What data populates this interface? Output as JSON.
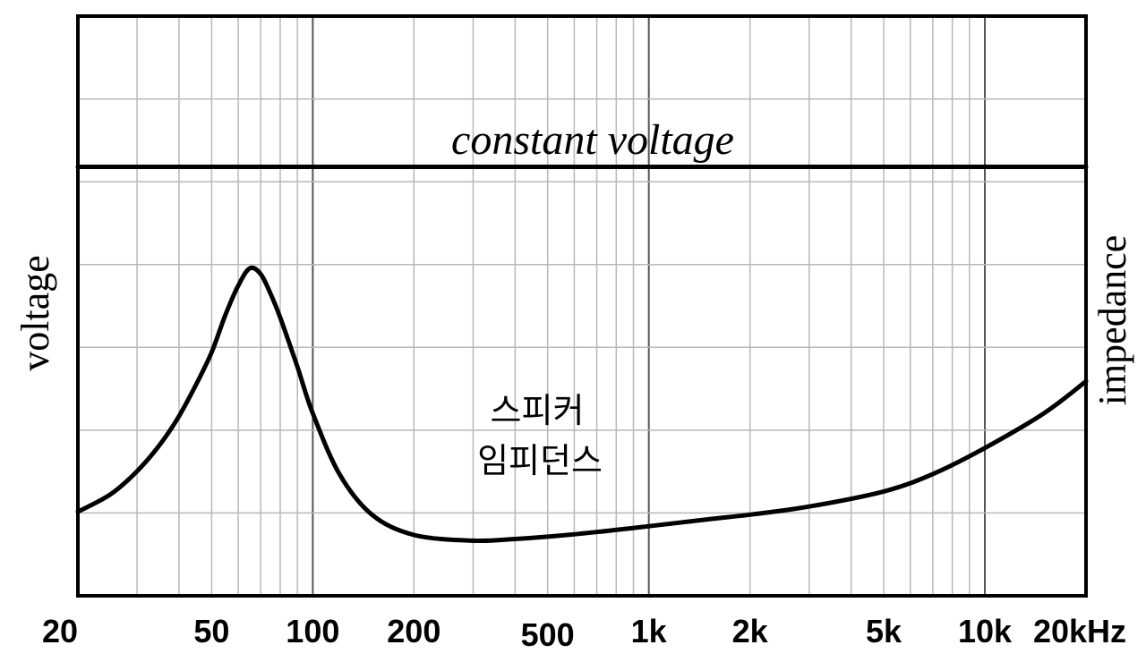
{
  "chart_data": {
    "type": "line",
    "x_scale": "log",
    "xlim": [
      20,
      20000
    ],
    "grid": true,
    "ylabel_left": "voltage",
    "ylabel_right": "impedance",
    "x_tick_labels": [
      "20",
      "50",
      "100",
      "200",
      "500",
      "1k",
      "2k",
      "5k",
      "10k",
      "20kHz"
    ],
    "x_tick_values": [
      20,
      50,
      100,
      200,
      500,
      1000,
      2000,
      5000,
      10000,
      20000
    ],
    "annotations": {
      "constant_voltage": "constant voltage",
      "impedance_line1": "스피커",
      "impedance_line2": "임피던스"
    },
    "y_range": [
      0,
      100
    ],
    "series": [
      {
        "role": "constant-voltage",
        "x": [
          20,
          20000
        ],
        "y": [
          74,
          74
        ]
      },
      {
        "role": "speaker-impedance",
        "x": [
          20,
          25,
          30,
          35,
          40,
          45,
          50,
          55,
          60,
          65,
          70,
          75,
          80,
          90,
          100,
          120,
          150,
          200,
          300,
          400,
          500,
          700,
          1000,
          1500,
          2000,
          3000,
          5000,
          7000,
          10000,
          15000,
          20000
        ],
        "y": [
          14.5,
          17.5,
          21.5,
          26,
          31,
          36.5,
          42,
          48.5,
          53.5,
          56.5,
          55.5,
          52,
          48,
          39.5,
          31.5,
          21,
          14,
          10.5,
          9.5,
          9.8,
          10.2,
          11,
          12,
          13.2,
          14,
          15.4,
          18,
          21,
          25.5,
          31.5,
          37
        ]
      }
    ]
  }
}
